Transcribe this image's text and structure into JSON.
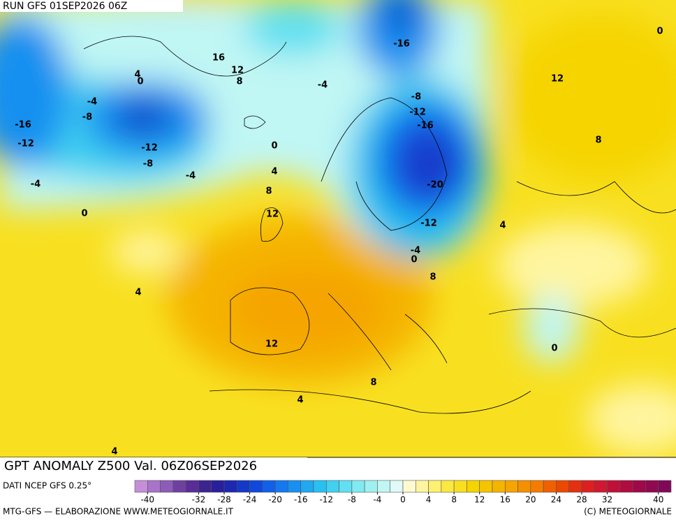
{
  "header": "RUN GFS 01SEP2026 06Z",
  "title": "GPT ANOMALY Z500 Val. 06Z06SEP2026",
  "source": "DATI NCEP GFS 0.25°",
  "footer_left": "MTG-GFS — ELABORAZIONE WWW.METEOGIORNALE.IT",
  "footer_right": "(C) METEOGIORNALE",
  "colorbar": {
    "lim": [
      -42,
      42
    ],
    "colors": [
      "#c58fd8",
      "#a874c8",
      "#8c5cb8",
      "#7040a0",
      "#5a2c98",
      "#3c2490",
      "#28209a",
      "#1c28b0",
      "#1438c8",
      "#1048dc",
      "#1060e8",
      "#1478f0",
      "#1890f0",
      "#20a8f0",
      "#28c0f0",
      "#40d0f0",
      "#60e0f0",
      "#80eaf0",
      "#a0f0f0",
      "#c0f6f4",
      "#e0fafa",
      "#fffad0",
      "#fff5a0",
      "#fff070",
      "#fbe840",
      "#f8e020",
      "#f5d400",
      "#f5c400",
      "#f5b400",
      "#f5a400",
      "#f59000",
      "#f57c00",
      "#f06000",
      "#eb4800",
      "#e43010",
      "#dc2020",
      "#d01830",
      "#c01038",
      "#b00c40",
      "#a00848",
      "#900850",
      "#800858"
    ],
    "ticks": [
      -40,
      -32,
      -28,
      -24,
      -20,
      -16,
      -12,
      -8,
      -4,
      0,
      4,
      8,
      12,
      16,
      20,
      24,
      28,
      32,
      40
    ]
  },
  "contour_labels": [
    -16,
    12,
    0,
    8,
    -4,
    -8,
    -12,
    -16,
    -20,
    -12,
    -4,
    0,
    8,
    4,
    16,
    12,
    8,
    4,
    0,
    -4,
    -8,
    -16,
    -12,
    -12,
    -8,
    -4,
    -4,
    0,
    4,
    8,
    12,
    0,
    4,
    12,
    8,
    4,
    4,
    0
  ]
}
